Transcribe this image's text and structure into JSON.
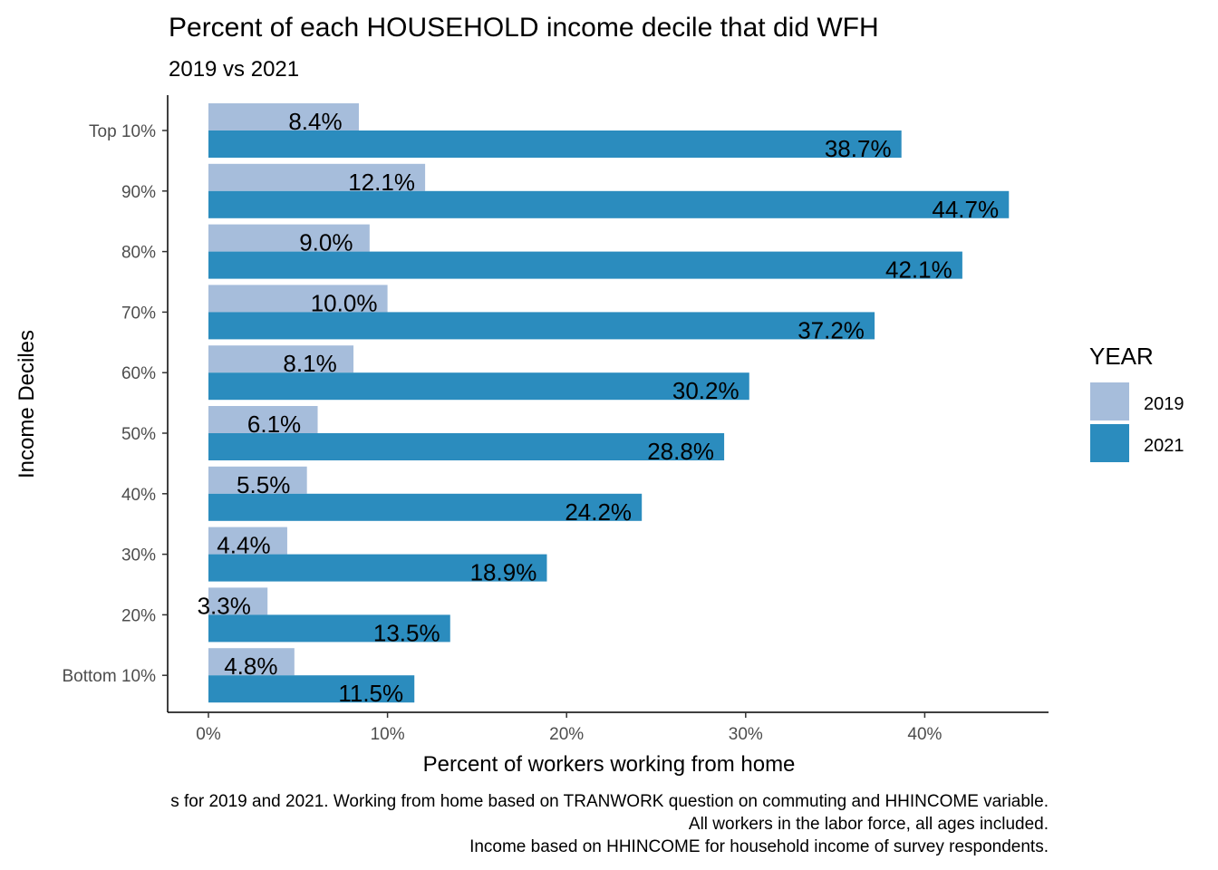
{
  "chart_data": {
    "type": "bar",
    "orientation": "horizontal",
    "title": "Percent of each HOUSEHOLD income decile that did WFH",
    "subtitle": "2019 vs 2021",
    "xlabel": "Percent of workers working from home",
    "ylabel": "Income Deciles",
    "xlim": [
      0,
      45
    ],
    "x_ticks": [
      0,
      10,
      20,
      30,
      40
    ],
    "x_tick_labels": [
      "0%",
      "10%",
      "20%",
      "30%",
      "40%"
    ],
    "categories": [
      "Top 10%",
      "90%",
      "80%",
      "70%",
      "60%",
      "50%",
      "40%",
      "30%",
      "20%",
      "Bottom 10%"
    ],
    "series": [
      {
        "name": "2019",
        "color": "#a6bddb",
        "values": [
          8.4,
          12.1,
          9.0,
          10.0,
          8.1,
          6.1,
          5.5,
          4.4,
          3.3,
          4.8
        ],
        "labels": [
          "8.4%",
          "12.1%",
          "9.0%",
          "10.0%",
          "8.1%",
          "6.1%",
          "5.5%",
          "4.4%",
          "3.3%",
          "4.8%"
        ]
      },
      {
        "name": "2021",
        "color": "#2b8cbe",
        "values": [
          38.7,
          44.7,
          42.1,
          37.2,
          30.2,
          28.8,
          24.2,
          18.9,
          13.5,
          11.5
        ],
        "labels": [
          "38.7%",
          "44.7%",
          "42.1%",
          "37.2%",
          "30.2%",
          "28.8%",
          "24.2%",
          "18.9%",
          "13.5%",
          "11.5%"
        ]
      }
    ],
    "legend": {
      "title": "YEAR",
      "position": "right"
    },
    "grid": false,
    "caption": [
      "s for 2019 and 2021. Working from home based on TRANWORK question on commuting and HHINCOME variable.",
      "All workers in the labor force, all ages included.",
      "Income based on HHINCOME for household income of survey respondents."
    ]
  }
}
